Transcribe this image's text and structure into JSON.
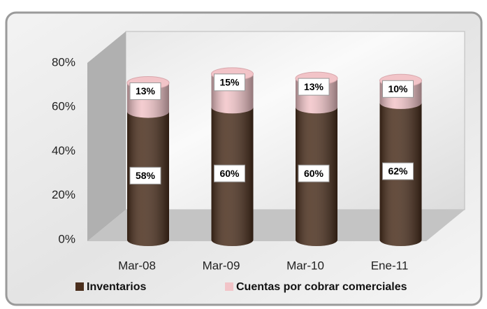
{
  "chart_data": {
    "type": "stacked_bar",
    "categories": [
      "Mar-08",
      "Mar-09",
      "Mar-10",
      "Ene-11"
    ],
    "series": [
      {
        "name": "Inventarios",
        "color": "#4a2e1c",
        "values": [
          58,
          60,
          60,
          62
        ],
        "value_labels": [
          "58%",
          "60%",
          "60%",
          "62%"
        ]
      },
      {
        "name": "Cuentas por cobrar comerciales",
        "color": "#f2c4c8",
        "values": [
          13,
          15,
          13,
          10
        ],
        "value_labels": [
          "13%",
          "15%",
          "13%",
          "10%"
        ]
      }
    ],
    "ylim": [
      0,
      80
    ],
    "yticks": [
      {
        "value": 0,
        "label": "0%"
      },
      {
        "value": 20,
        "label": "20%"
      },
      {
        "value": 40,
        "label": "40%"
      },
      {
        "value": 60,
        "label": "60%"
      },
      {
        "value": 80,
        "label": "80%"
      }
    ],
    "grid": false
  }
}
